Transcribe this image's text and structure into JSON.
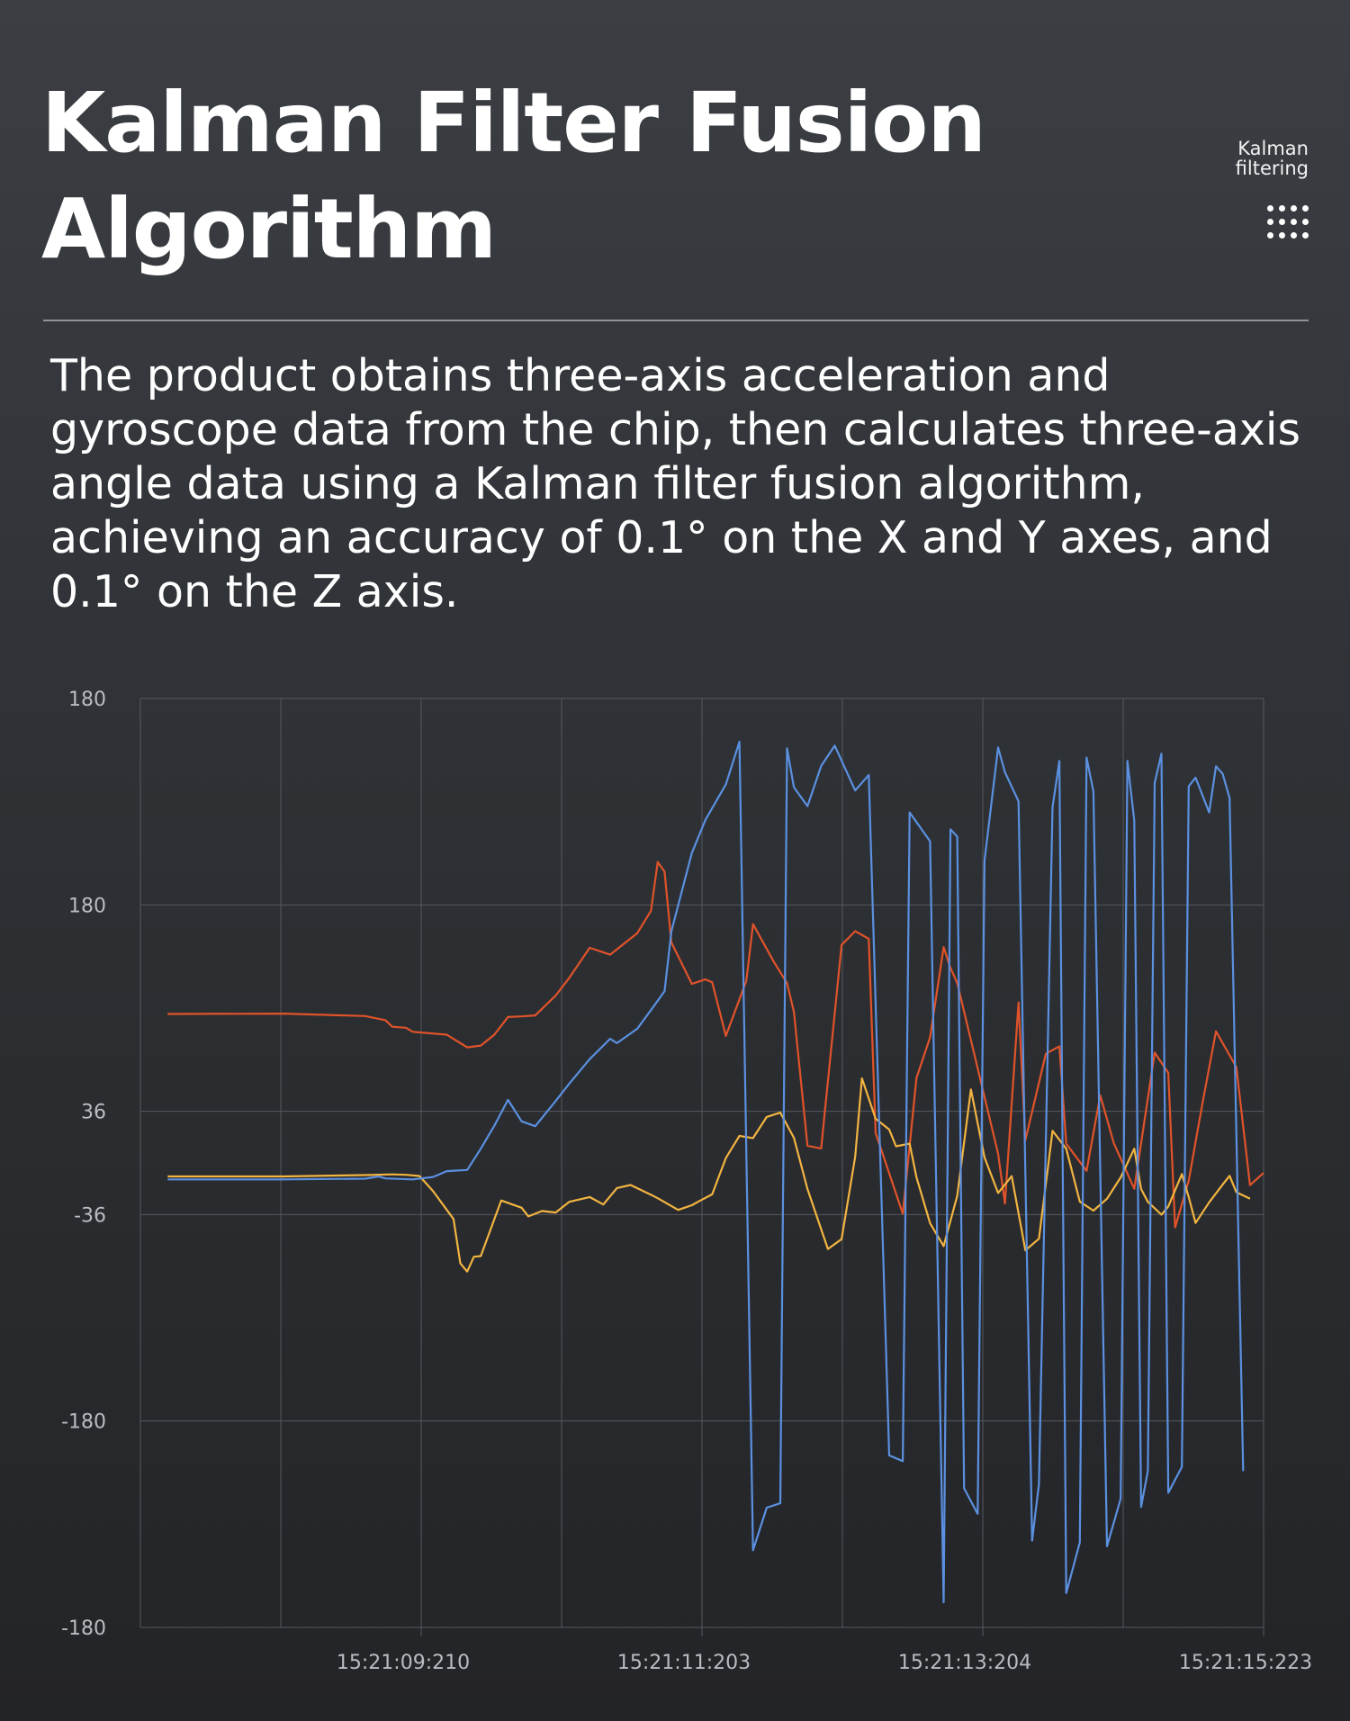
{
  "header": {
    "title": "Kalman Filter Fusion Algorithm",
    "side_label": "Kalman filtering",
    "menu_icon": "dots-grid-icon"
  },
  "description": "The product obtains three-axis acceleration and gyroscope data from the chip, then calculates three-axis angle data using a Kalman filter fusion algorithm, achieving an accuracy of 0.1° on the X and Y axes, and 0.1° on the Z axis.",
  "colors": {
    "background": "#2f3236",
    "grid": "#55585d",
    "series_orange": "#e0532a",
    "series_yellow": "#f2b441",
    "series_blue": "#5b90e0"
  },
  "chart_data": {
    "type": "line",
    "title": "",
    "xlabel": "",
    "ylabel": "",
    "x_tick_labels": [
      "15:21:09:210",
      "15:21:11:203",
      "15:21:13:204",
      "15:21:15:223"
    ],
    "y_tick_labels": [
      "180",
      "180",
      "36",
      "-36",
      "-180",
      "-180"
    ],
    "grid": true,
    "legend": "none",
    "series": [
      {
        "color": "#e0532a",
        "points": [
          [
            0.4,
            103.9
          ],
          [
            2.1,
            104.2
          ],
          [
            3.3,
            102.5
          ],
          [
            3.6,
            99.6
          ],
          [
            3.7,
            95.0
          ],
          [
            3.9,
            94.3
          ],
          [
            4.0,
            91.5
          ],
          [
            4.5,
            89.5
          ],
          [
            4.8,
            80.6
          ],
          [
            5.0,
            81.9
          ],
          [
            5.2,
            89.5
          ],
          [
            5.4,
            101.8
          ],
          [
            5.6,
            102.2
          ],
          [
            5.8,
            102.9
          ],
          [
            6.1,
            116.7
          ],
          [
            6.3,
            129.1
          ],
          [
            6.6,
            150.1
          ],
          [
            6.9,
            145.3
          ],
          [
            7.3,
            160.3
          ],
          [
            7.5,
            175.9
          ],
          [
            7.6,
            209.9
          ],
          [
            7.7,
            203.2
          ],
          [
            7.8,
            153.8
          ],
          [
            8.1,
            124.9
          ],
          [
            8.3,
            128.0
          ],
          [
            8.4,
            126.0
          ],
          [
            8.6,
            88.6
          ],
          [
            8.9,
            126.9
          ],
          [
            9.0,
            166.6
          ],
          [
            9.3,
            140.8
          ],
          [
            9.5,
            125.4
          ],
          [
            9.6,
            105.5
          ],
          [
            9.8,
            12.0
          ],
          [
            10.0,
            10.1
          ],
          [
            10.3,
            152.1
          ],
          [
            10.5,
            161.7
          ],
          [
            10.7,
            156.4
          ],
          [
            10.8,
            21.0
          ],
          [
            11.2,
            -35.4
          ],
          [
            11.4,
            59.3
          ],
          [
            11.6,
            87.6
          ],
          [
            11.8,
            150.6
          ],
          [
            11.9,
            135.9
          ],
          [
            12.0,
            125.6
          ],
          [
            12.6,
            6.4
          ],
          [
            12.7,
            -28.3
          ],
          [
            12.9,
            111.9
          ],
          [
            13.0,
            15.9
          ],
          [
            13.3,
            76.1
          ],
          [
            13.5,
            81.4
          ],
          [
            13.6,
            13.4
          ],
          [
            13.9,
            -5.5
          ],
          [
            14.1,
            47.1
          ],
          [
            14.3,
            13.7
          ],
          [
            14.6,
            -18.0
          ],
          [
            14.9,
            77.0
          ],
          [
            15.1,
            62.8
          ],
          [
            15.2,
            -45.0
          ],
          [
            15.4,
            -12.3
          ],
          [
            15.6,
            41.0
          ],
          [
            15.8,
            91.8
          ],
          [
            16.1,
            66.9
          ],
          [
            16.3,
            -15.5
          ],
          [
            16.5,
            -7.0
          ]
        ]
      },
      {
        "color": "#f2b441",
        "points": [
          [
            0.4,
            -9.4
          ],
          [
            2.1,
            -9.4
          ],
          [
            3.3,
            -8.5
          ],
          [
            3.7,
            -8.0
          ],
          [
            3.9,
            -8.3
          ],
          [
            4.1,
            -9.1
          ],
          [
            4.3,
            -19.7
          ],
          [
            4.6,
            -39.1
          ],
          [
            4.7,
            -70.1
          ],
          [
            4.8,
            -75.8
          ],
          [
            4.9,
            -65.4
          ],
          [
            5.0,
            -65.0
          ],
          [
            5.3,
            -26.2
          ],
          [
            5.6,
            -31.3
          ],
          [
            5.7,
            -37.3
          ],
          [
            5.9,
            -33.5
          ],
          [
            6.1,
            -34.6
          ],
          [
            6.3,
            -27.1
          ],
          [
            6.6,
            -23.8
          ],
          [
            6.8,
            -29.0
          ],
          [
            7.0,
            -17.5
          ],
          [
            7.2,
            -15.4
          ],
          [
            7.5,
            -22.2
          ],
          [
            7.6,
            -24.6
          ],
          [
            7.9,
            -32.8
          ],
          [
            8.1,
            -29.5
          ],
          [
            8.2,
            -26.9
          ],
          [
            8.4,
            -21.9
          ],
          [
            8.6,
            3.4
          ],
          [
            8.8,
            18.9
          ],
          [
            9.0,
            17.3
          ],
          [
            9.2,
            32.1
          ],
          [
            9.4,
            35.1
          ],
          [
            9.6,
            17.6
          ],
          [
            9.8,
            -18.2
          ],
          [
            10.1,
            -60.0
          ],
          [
            10.3,
            -53.2
          ],
          [
            10.5,
            4.3
          ],
          [
            10.6,
            59.0
          ],
          [
            10.8,
            30.8
          ],
          [
            11.0,
            23.3
          ],
          [
            11.1,
            11.6
          ],
          [
            11.3,
            13.5
          ],
          [
            11.4,
            -10.0
          ],
          [
            11.6,
            -42.0
          ],
          [
            11.8,
            -58.0
          ],
          [
            12.0,
            -22.9
          ],
          [
            12.2,
            51.3
          ],
          [
            12.4,
            3.8
          ],
          [
            12.6,
            -21.0
          ],
          [
            12.8,
            -9.2
          ],
          [
            13.0,
            -61.0
          ],
          [
            13.2,
            -52.9
          ],
          [
            13.4,
            22.4
          ],
          [
            13.6,
            9.9
          ],
          [
            13.8,
            -27.0
          ],
          [
            14.0,
            -33.3
          ],
          [
            14.2,
            -25.0
          ],
          [
            14.4,
            -10.1
          ],
          [
            14.6,
            9.9
          ],
          [
            14.7,
            -18.2
          ],
          [
            14.8,
            -27.1
          ],
          [
            15.0,
            -36.1
          ],
          [
            15.1,
            -30.4
          ],
          [
            15.3,
            -7.8
          ],
          [
            15.4,
            -23.8
          ],
          [
            15.5,
            -41.9
          ],
          [
            15.7,
            -27.5
          ],
          [
            15.9,
            -15.0
          ],
          [
            16.0,
            -9.0
          ],
          [
            16.1,
            -20.4
          ],
          [
            16.3,
            -25.0
          ]
        ]
      },
      {
        "color": "#5b90e0",
        "points": [
          [
            0.4,
            -11.5
          ],
          [
            2.1,
            -11.5
          ],
          [
            3.3,
            -11.0
          ],
          [
            3.5,
            -9.5
          ],
          [
            3.6,
            -10.8
          ],
          [
            4.0,
            -11.5
          ],
          [
            4.3,
            -9.8
          ],
          [
            4.5,
            -5.7
          ],
          [
            4.8,
            -4.9
          ],
          [
            5.0,
            9.9
          ],
          [
            5.2,
            26.0
          ],
          [
            5.4,
            44.0
          ],
          [
            5.6,
            29.0
          ],
          [
            5.8,
            25.6
          ],
          [
            6.1,
            43.2
          ],
          [
            6.3,
            55.3
          ],
          [
            6.6,
            72.4
          ],
          [
            6.9,
            86.6
          ],
          [
            7.0,
            83.6
          ],
          [
            7.3,
            93.6
          ],
          [
            7.5,
            106.6
          ],
          [
            7.7,
            119.8
          ],
          [
            7.8,
            161.6
          ],
          [
            8.1,
            216.2
          ],
          [
            8.3,
            239.3
          ],
          [
            8.6,
            264.1
          ],
          [
            8.8,
            293.8
          ],
          [
            9.0,
            -270.2
          ],
          [
            9.2,
            -240.5
          ],
          [
            9.4,
            -237.4
          ],
          [
            9.5,
            289.3
          ],
          [
            9.6,
            262.1
          ],
          [
            9.8,
            248.9
          ],
          [
            10.0,
            276.9
          ],
          [
            10.2,
            291.1
          ],
          [
            10.5,
            259.8
          ],
          [
            10.7,
            270.6
          ],
          [
            11.0,
            -204.0
          ],
          [
            11.2,
            -208.0
          ],
          [
            11.3,
            244.5
          ],
          [
            11.6,
            224.4
          ],
          [
            11.8,
            -306.5
          ],
          [
            11.9,
            232.7
          ],
          [
            12.0,
            227.6
          ],
          [
            12.1,
            -227.0
          ],
          [
            12.3,
            -244.8
          ],
          [
            12.4,
            210.8
          ],
          [
            12.6,
            289.8
          ],
          [
            12.7,
            272.6
          ],
          [
            12.9,
            252.3
          ],
          [
            13.1,
            -263.5
          ],
          [
            13.2,
            -223.8
          ],
          [
            13.4,
            248.3
          ],
          [
            13.5,
            280.4
          ],
          [
            13.6,
            -300.1
          ],
          [
            13.8,
            -264.7
          ],
          [
            13.9,
            282.8
          ],
          [
            14.0,
            259.1
          ],
          [
            14.2,
            -267.4
          ],
          [
            14.4,
            -234.2
          ],
          [
            14.5,
            280.5
          ],
          [
            14.6,
            238.7
          ],
          [
            14.7,
            -239.9
          ],
          [
            14.8,
            -214.9
          ],
          [
            14.9,
            265.1
          ],
          [
            15.0,
            285.5
          ],
          [
            15.1,
            -230.1
          ],
          [
            15.3,
            -212.0
          ],
          [
            15.4,
            262.8
          ],
          [
            15.5,
            268.8
          ],
          [
            15.7,
            244.5
          ],
          [
            15.8,
            276.7
          ],
          [
            15.9,
            271.3
          ],
          [
            16.0,
            254.5
          ],
          [
            16.2,
            -215.0
          ]
        ]
      }
    ]
  }
}
